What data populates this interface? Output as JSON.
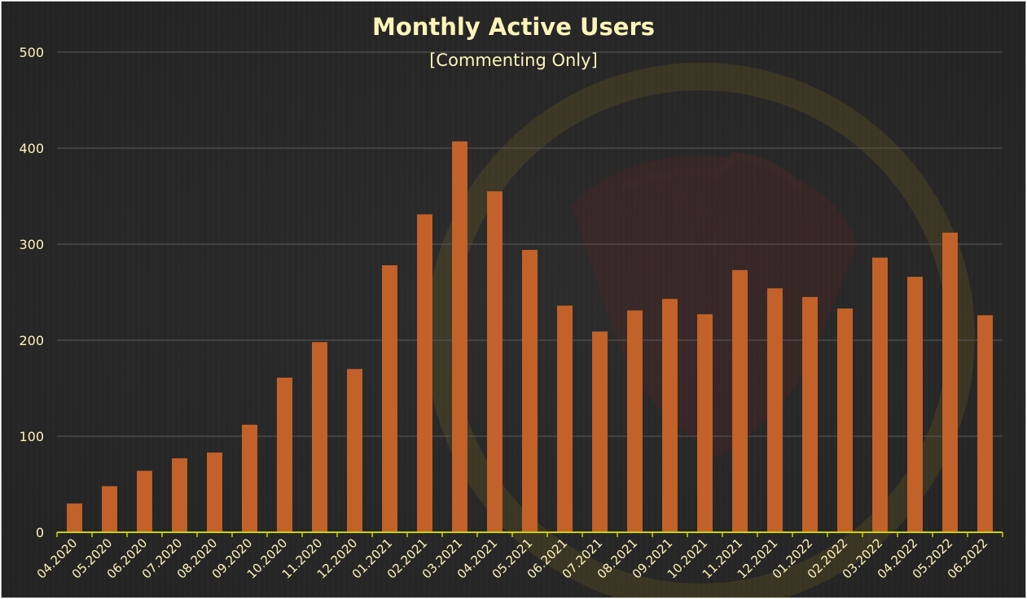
{
  "chart_data": {
    "type": "bar",
    "title": "Monthly Active Users",
    "subtitle": "[Commenting Only]",
    "xlabel": "",
    "ylabel": "",
    "ylim": [
      0,
      500
    ],
    "yticks": [
      0,
      100,
      200,
      300,
      400,
      500
    ],
    "grid": true,
    "legend": "none",
    "categories": [
      "04.2020",
      "05.2020",
      "06.2020",
      "07.2020",
      "08.2020",
      "09.2020",
      "10.2020",
      "11.2020",
      "12.2020",
      "01.2021",
      "02.2021",
      "03.2021",
      "04.2021",
      "05.2021",
      "06.2021",
      "07.2021",
      "08.2021",
      "09.2021",
      "10.2021",
      "11.2021",
      "12.2021",
      "01.2022",
      "02.2022",
      "03.2022",
      "04.2022",
      "05.2022",
      "06.2022"
    ],
    "values": [
      30,
      48,
      64,
      77,
      83,
      112,
      161,
      198,
      170,
      278,
      331,
      407,
      355,
      294,
      236,
      209,
      231,
      243,
      227,
      273,
      254,
      245,
      233,
      286,
      266,
      312,
      226
    ],
    "colors": {
      "bar": "#c2622a",
      "axis": "#c8d400",
      "grid": "#5a5a5a",
      "text": "#fff4b8",
      "background": "#282828"
    }
  }
}
